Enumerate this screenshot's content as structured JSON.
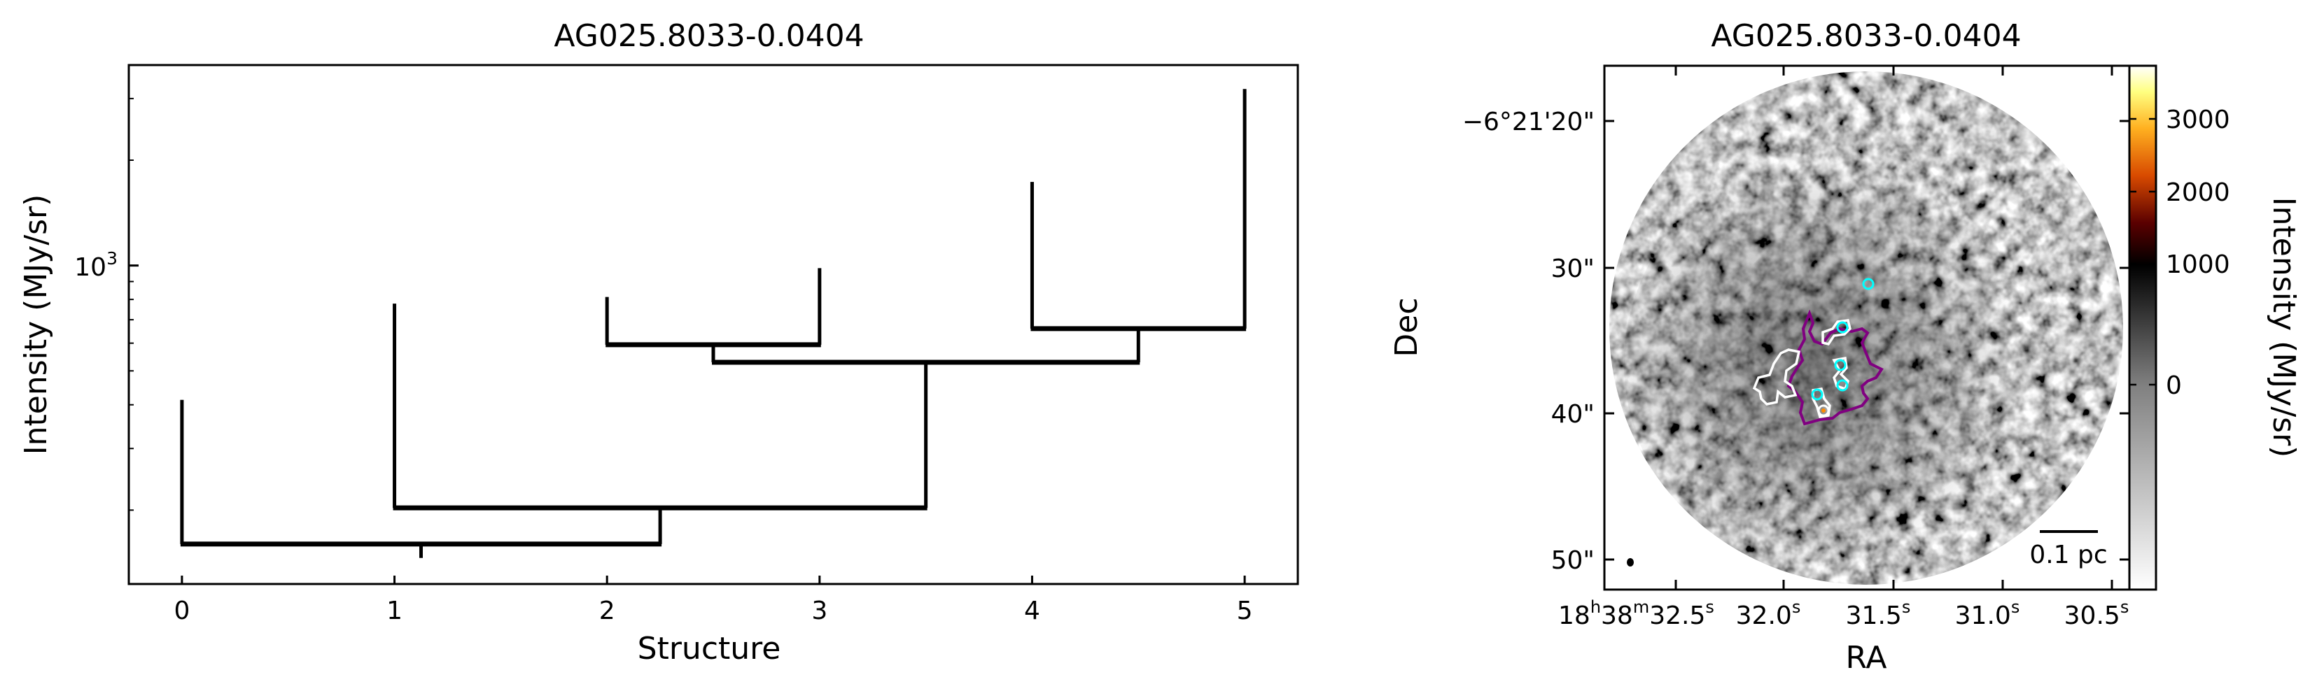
{
  "chart_data": [
    {
      "type": "dendrogram",
      "title": "AG025.8033-0.0404",
      "xlabel": "Structure",
      "ylabel": "Intensity (MJy/sr)",
      "yscale": "log",
      "xlim": [
        -0.25,
        5.25
      ],
      "ylim": [
        123,
        3740
      ],
      "xticks": [
        0,
        1,
        2,
        3,
        4,
        5
      ],
      "xtick_labels": [
        "0",
        "1",
        "2",
        "3",
        "4",
        "5"
      ],
      "yticks_major": [
        1000
      ],
      "ytick_major_label_base": "10",
      "ytick_major_label_exp": "3",
      "yticks_minor": [
        200,
        300,
        400,
        500,
        600,
        700,
        800,
        900,
        2000,
        3000
      ],
      "grid": false,
      "line_color": "#000000",
      "nodes": [
        {
          "id": "leaf0",
          "x": 0,
          "value": 413,
          "parent_level": 160
        },
        {
          "id": "leaf1",
          "x": 1,
          "value": 778,
          "parent_level": 203
        },
        {
          "id": "leaf2",
          "x": 2,
          "value": 813,
          "parent_level": 594
        },
        {
          "id": "leaf3",
          "x": 3,
          "value": 983,
          "parent_level": 594
        },
        {
          "id": "leaf4",
          "x": 4,
          "value": 1733,
          "parent_level": 660
        },
        {
          "id": "leaf5",
          "x": 5,
          "value": 3195,
          "parent_level": 660
        },
        {
          "id": "branch23",
          "x": 2.5,
          "value": 594,
          "parent_level": 529,
          "span": [
            2,
            3
          ]
        },
        {
          "id": "branch45",
          "x": 4.5,
          "value": 660,
          "parent_level": 529,
          "span": [
            4,
            5
          ]
        },
        {
          "id": "branch2345",
          "x": 3.5,
          "value": 529,
          "parent_level": 203,
          "span": [
            2.5,
            4.5
          ]
        },
        {
          "id": "branch1",
          "x": 2.25,
          "value": 203,
          "parent_level": 160,
          "span": [
            1,
            3.5
          ]
        },
        {
          "id": "root",
          "x": 1.125,
          "value": 160,
          "parent_level": 146,
          "span": [
            0,
            2.25
          ]
        }
      ]
    },
    {
      "type": "image",
      "title": "AG025.8033-0.0404",
      "xlabel": "RA",
      "ylabel": "Dec",
      "ra_ticks": [
        {
          "main": "18",
          "sup1": "h",
          "mid": "38",
          "sup2": "m",
          "sec": "32.5",
          "sup3": "s"
        },
        {
          "sec": "32.0",
          "sup3": "s"
        },
        {
          "sec": "31.5",
          "sup3": "s"
        },
        {
          "sec": "31.0",
          "sup3": "s"
        },
        {
          "sec": "30.5",
          "sup3": "s"
        }
      ],
      "dec_ticks": [
        "−6°21'20\"",
        "30\"",
        "40\"",
        "50\""
      ],
      "colorbar": {
        "label": "Intensity (MJy/sr)",
        "ticks": [
          0,
          1000,
          2000,
          3000
        ],
        "tick_labels": [
          "0",
          "1000",
          "2000",
          "3000"
        ],
        "colormap": "gray-to-afmhot"
      },
      "scalebar_label": "0.1 pc",
      "contour_colors": {
        "outer": "#800080",
        "inner": "#ffffff",
        "cores": "#00ffff",
        "peak": "#ff8c00"
      }
    }
  ]
}
